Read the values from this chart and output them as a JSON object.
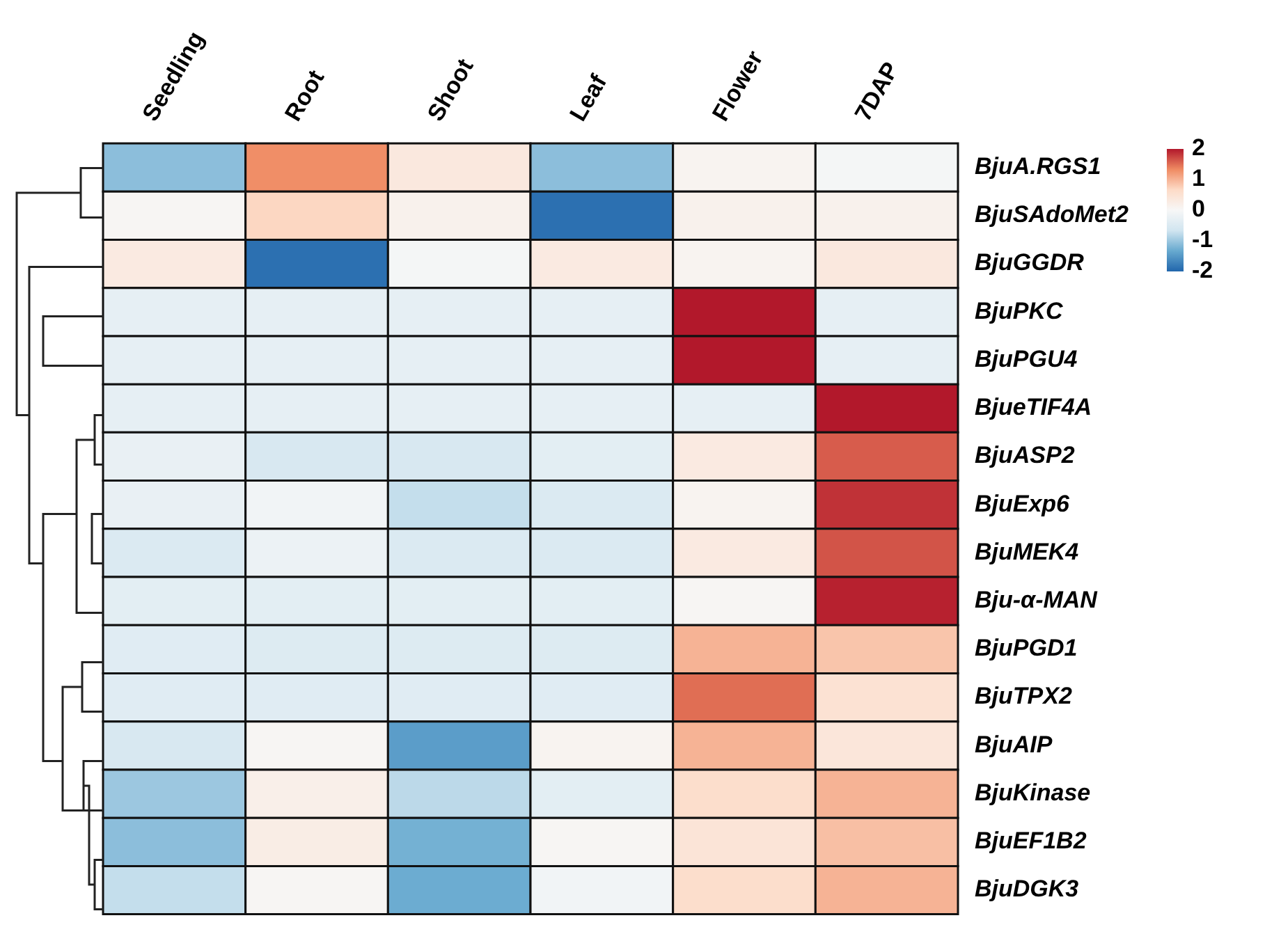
{
  "chart_data": {
    "type": "heatmap",
    "categories": [
      "Seedling",
      "Root",
      "Shoot",
      "Leaf",
      "Flower",
      "7DAP"
    ],
    "y_categories": [
      "BjuA.RGS1",
      "BjuSAdoMet2",
      "BjuGGDR",
      "BjuPKC",
      "BjuPGU4",
      "BjueTIF4A",
      "BjuASP2",
      "BjuExp6",
      "BjuMEK4",
      "Bju-α-MAN",
      "BjuPGD1",
      "BjuTPX2",
      "BjuAIP",
      "BjuKinase",
      "BjuEF1B2",
      "BjuDGK3"
    ],
    "cells": [
      [
        -1.1,
        1.3,
        0.35,
        -1.1,
        0.1,
        -0.05
      ],
      [
        0.05,
        0.7,
        0.15,
        -1.9,
        0.15,
        0.15
      ],
      [
        0.3,
        -1.9,
        -0.05,
        0.3,
        0.1,
        0.35
      ],
      [
        -0.3,
        -0.3,
        -0.3,
        -0.3,
        2,
        -0.3
      ],
      [
        -0.3,
        -0.3,
        -0.3,
        -0.3,
        2,
        -0.3
      ],
      [
        -0.3,
        -0.3,
        -0.3,
        -0.3,
        -0.3,
        2
      ],
      [
        -0.25,
        -0.55,
        -0.55,
        -0.35,
        0.3,
        1.6
      ],
      [
        -0.25,
        -0.1,
        -0.75,
        -0.5,
        0.1,
        1.85
      ],
      [
        -0.5,
        -0.2,
        -0.5,
        -0.5,
        0.3,
        1.65
      ],
      [
        -0.35,
        -0.35,
        -0.35,
        -0.35,
        0.05,
        1.95
      ],
      [
        -0.4,
        -0.45,
        -0.45,
        -0.45,
        1,
        0.85
      ],
      [
        -0.4,
        -0.4,
        -0.4,
        -0.4,
        1.5,
        0.5
      ],
      [
        -0.55,
        0.05,
        -1.45,
        0.1,
        1,
        0.4
      ],
      [
        -1,
        0.2,
        -0.8,
        -0.35,
        0.6,
        1
      ],
      [
        -1.1,
        0.25,
        -1.25,
        0.05,
        0.45,
        0.9
      ],
      [
        -0.75,
        0.05,
        -1.3,
        -0.1,
        0.6,
        1
      ]
    ],
    "clim": [
      -2,
      2
    ],
    "cticks": [
      -2,
      -1,
      0,
      1,
      2
    ]
  }
}
